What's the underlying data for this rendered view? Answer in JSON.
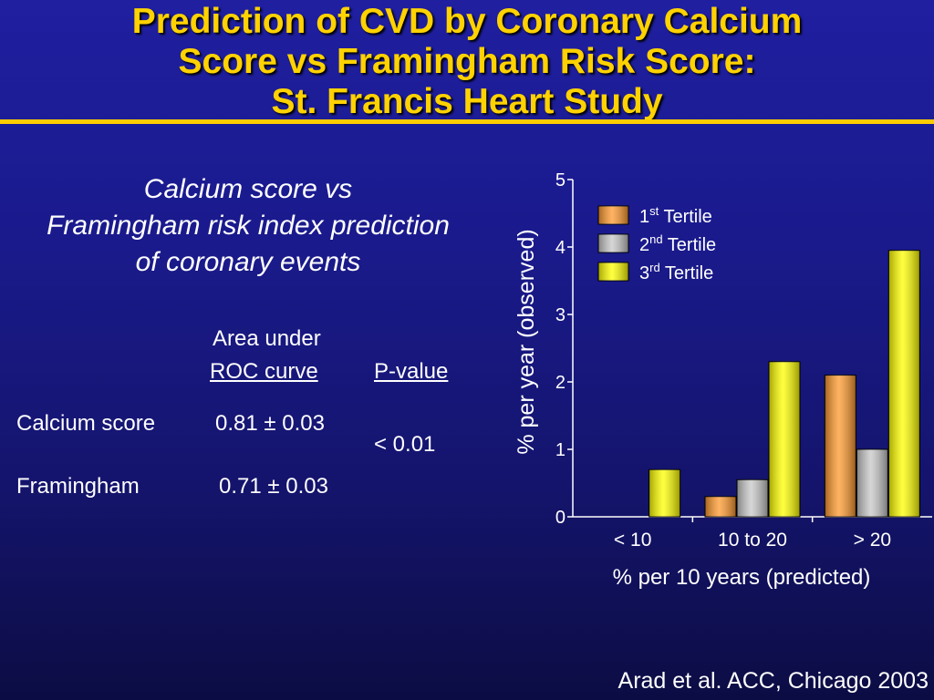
{
  "title": {
    "line1": "Prediction of CVD by Coronary Calcium",
    "line2": "Score vs Framingham Risk Score:",
    "line3": "St. Francis Heart Study"
  },
  "subtitle": {
    "line1": "Calcium score vs",
    "line2": "Framingham risk index prediction",
    "line3": "of coronary events"
  },
  "table": {
    "header_area_line1": "Area under",
    "header_area_line2": "ROC curve",
    "header_pvalue": "P-value",
    "rows": [
      {
        "label": "Calcium score",
        "area": "0.81 ± 0.03"
      },
      {
        "label": "Framingham",
        "area": "0.71 ± 0.03"
      }
    ],
    "pvalue": "< 0.01"
  },
  "colors": {
    "background": "#1a1a8c",
    "title": "#ffd200",
    "rule": "#ffcc00",
    "tertile1": "#ff9a2e",
    "tertile2": "#c8c8c8",
    "tertile3": "#ffff00"
  },
  "chart_data": {
    "type": "bar",
    "categories": [
      "< 10",
      "10 to 20",
      "> 20"
    ],
    "series": [
      {
        "name": "1st Tertile",
        "base": "1",
        "sup": "st",
        "rest": " Tertile",
        "color": "#ff9a2e",
        "values": [
          0,
          0.3,
          2.1
        ]
      },
      {
        "name": "2nd Tertile",
        "base": "2",
        "sup": "nd",
        "rest": " Tertile",
        "color": "#c8c8c8",
        "values": [
          0,
          0.55,
          1.0
        ]
      },
      {
        "name": "3rd Tertile",
        "base": "3",
        "sup": "rd",
        "rest": " Tertile",
        "color": "#ffff00",
        "values": [
          0.7,
          2.3,
          3.95
        ]
      }
    ],
    "xlabel": "% per 10 years (predicted)",
    "ylabel": "% per year (observed)",
    "ylim": [
      0,
      5
    ],
    "yticks": [
      "0",
      "1",
      "2",
      "3",
      "4",
      "5"
    ],
    "grid": false,
    "legend_position": "top-left"
  },
  "citation": "Arad et al. ACC, Chicago 2003"
}
